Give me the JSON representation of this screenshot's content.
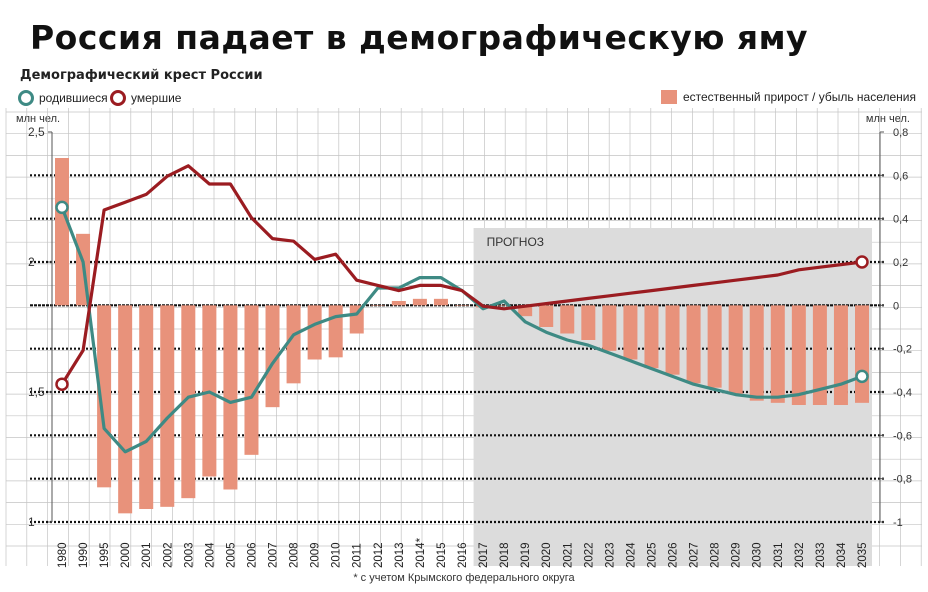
{
  "page": {
    "title": "Россия падает в демографическую яму",
    "subtitle": "Демографический крест России",
    "legend_born": "родившиеся",
    "legend_died": "умершие",
    "legend_natural": "естественный прирост / убыль населения",
    "unit_left": "млн чел.",
    "unit_right": "млн чел.",
    "forecast_label": "ПРОГНОЗ",
    "footnote": "* с учетом Крымского федерального округа"
  },
  "colors": {
    "born": "#3e8a84",
    "died": "#9b1c21",
    "bars": "#e8927b",
    "forecast_bg": "#dcdcdc",
    "grid": "#c4c4c4"
  },
  "chart_data": {
    "type": "line+bar",
    "title": "Демографический крест России",
    "categories": [
      "1980",
      "1990",
      "1995",
      "2000",
      "2001",
      "2002",
      "2003",
      "2004",
      "2005",
      "2006",
      "2007",
      "2008",
      "2009",
      "2010",
      "2011",
      "2012",
      "2013",
      "2014*",
      "2015",
      "2016",
      "2017",
      "2018",
      "2019",
      "2020",
      "2021",
      "2022",
      "2023",
      "2024",
      "2025",
      "2026",
      "2027",
      "2028",
      "2029",
      "2030",
      "2031",
      "2032",
      "2033",
      "2034",
      "2035"
    ],
    "forecast_start": "2017",
    "left_axis": {
      "label": "млн чел.",
      "ylim": [
        1,
        2.5
      ],
      "ticks": [
        "1",
        "1,5",
        "2",
        "2,5"
      ]
    },
    "right_axis": {
      "label": "млн чел.",
      "ylim": [
        -1,
        0.8
      ],
      "ticks": [
        "0,8",
        "0,6",
        "0,4",
        "0,2",
        "0",
        "-0,2",
        "-0,4",
        "-0,6",
        "-0,8",
        "-1"
      ]
    },
    "series": [
      {
        "name": "родившиеся",
        "axis": "left",
        "type": "line",
        "values": [
          2.21,
          2.0,
          1.36,
          1.27,
          1.31,
          1.4,
          1.48,
          1.5,
          1.46,
          1.48,
          1.61,
          1.72,
          1.76,
          1.79,
          1.8,
          1.9,
          1.9,
          1.94,
          1.94,
          1.89,
          1.82,
          1.85,
          1.77,
          1.73,
          1.7,
          1.68,
          1.65,
          1.62,
          1.59,
          1.56,
          1.53,
          1.51,
          1.49,
          1.48,
          1.48,
          1.49,
          1.51,
          1.53,
          1.56
        ]
      },
      {
        "name": "умершие",
        "axis": "left",
        "type": "line",
        "values": [
          1.53,
          1.66,
          2.2,
          2.23,
          2.26,
          2.33,
          2.37,
          2.3,
          2.3,
          2.17,
          2.09,
          2.08,
          2.01,
          2.03,
          1.93,
          1.91,
          1.89,
          1.91,
          1.91,
          1.89,
          1.83,
          1.82,
          1.83,
          1.84,
          1.85,
          1.86,
          1.87,
          1.88,
          1.89,
          1.9,
          1.91,
          1.92,
          1.93,
          1.94,
          1.95,
          1.97,
          1.98,
          1.99,
          2.0
        ]
      },
      {
        "name": "естественный прирост / убыль населения",
        "axis": "right",
        "type": "bar",
        "values": [
          0.68,
          0.33,
          -0.84,
          -0.96,
          -0.94,
          -0.93,
          -0.89,
          -0.79,
          -0.85,
          -0.69,
          -0.47,
          -0.36,
          -0.25,
          -0.24,
          -0.13,
          0.0,
          0.02,
          0.03,
          0.03,
          0.0,
          -0.01,
          0.0,
          -0.05,
          -0.1,
          -0.13,
          -0.16,
          -0.21,
          -0.25,
          -0.29,
          -0.32,
          -0.36,
          -0.38,
          -0.41,
          -0.44,
          -0.45,
          -0.46,
          -0.46,
          -0.46,
          -0.45
        ]
      }
    ]
  }
}
